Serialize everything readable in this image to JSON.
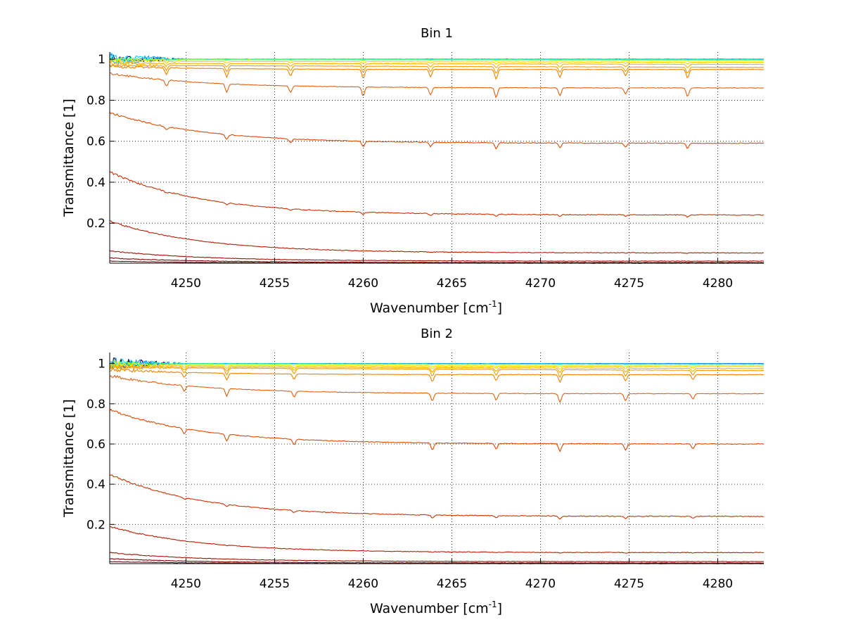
{
  "chart_data": [
    {
      "type": "line",
      "title": "Bin 1",
      "xlabel": "Wavenumber [cm",
      "xlabel_sup": "-1",
      "xlabel_end": "]",
      "ylabel": "Transmittance [1]",
      "xlim": [
        4245.7,
        4282.6
      ],
      "ylim": [
        0.005,
        1.035
      ],
      "xticks": [
        4250,
        4255,
        4260,
        4265,
        4270,
        4275,
        4280
      ],
      "yticks": [
        0.2,
        0.4,
        0.6,
        0.8,
        1
      ],
      "xtick_labels": [
        "4250",
        "4255",
        "4260",
        "4265",
        "4270",
        "4275",
        "4280"
      ],
      "ytick_labels": [
        "0.2",
        "0.4",
        "0.6",
        "0.8",
        "1"
      ],
      "grid": true,
      "grid_style": "dotted",
      "dip_positions": [
        4248.9,
        4252.3,
        4255.9,
        4260.0,
        4263.8,
        4267.5,
        4271.1,
        4274.8,
        4278.3
      ],
      "series": [
        {
          "color": "#00002a",
          "start": 1.0,
          "end": 1.0,
          "decay": 0,
          "dip": 0.0,
          "edge_noise": 0.02
        },
        {
          "color": "#1e90ff",
          "start": 1.0,
          "end": 1.0,
          "decay": 0,
          "dip": 0.0,
          "edge_noise": 0.03
        },
        {
          "color": "#00d0ff",
          "start": 1.0,
          "end": 0.998,
          "decay": 0,
          "dip": 0.0,
          "edge_noise": 0.025
        },
        {
          "color": "#39ff8a",
          "start": 1.0,
          "end": 0.997,
          "decay": 0,
          "dip": 0.002,
          "edge_noise": 0.01
        },
        {
          "color": "#e0ff20",
          "start": 0.997,
          "end": 0.993,
          "decay": 0,
          "dip": 0.004,
          "edge_noise": 0.01
        },
        {
          "color": "#ffd000",
          "start": 0.99,
          "end": 0.985,
          "decay": 0,
          "dip": 0.01,
          "edge_noise": 0.01
        },
        {
          "color": "#ffb000",
          "start": 0.98,
          "end": 0.975,
          "decay": 0,
          "dip": 0.02,
          "edge_noise": 0.008
        },
        {
          "color": "#ff9a00",
          "start": 0.97,
          "end": 0.96,
          "decay": 0,
          "dip": 0.035,
          "edge_noise": 0.008
        },
        {
          "color": "#f08000",
          "start": 0.965,
          "end": 0.95,
          "decay": 0.002,
          "dip": 0.05,
          "edge_noise": 0.006
        },
        {
          "color": "#e06010",
          "start": 0.93,
          "end": 0.86,
          "decay": 0.04,
          "dip": 0.05,
          "edge_noise": 0.005
        },
        {
          "color": "#dc4a00",
          "start": 0.74,
          "end": 0.59,
          "decay": 0.13,
          "dip": 0.03,
          "edge_noise": 0.004
        },
        {
          "color": "#cc3000",
          "start": 0.45,
          "end": 0.24,
          "decay": 0.21,
          "dip": 0.012,
          "edge_noise": 0.003
        },
        {
          "color": "#b81a00",
          "start": 0.21,
          "end": 0.055,
          "decay": 0.14,
          "dip": 0.002,
          "edge_noise": 0.002
        },
        {
          "color": "#a01000",
          "start": 0.065,
          "end": 0.015,
          "decay": 0.045,
          "dip": 0.0,
          "edge_noise": 0.001
        },
        {
          "color": "#800000",
          "start": 0.03,
          "end": 0.008,
          "decay": 0.02,
          "dip": 0.0,
          "edge_noise": 0.001
        },
        {
          "color": "#5a1010",
          "start": 0.015,
          "end": 0.005,
          "decay": 0.01,
          "dip": 0.0,
          "edge_noise": 0.0
        }
      ]
    },
    {
      "type": "line",
      "title": "Bin 2",
      "xlabel": "Wavenumber [cm",
      "xlabel_sup": "-1",
      "xlabel_end": "]",
      "ylabel": "Transmittance [1]",
      "xlim": [
        4245.7,
        4282.6
      ],
      "ylim": [
        0.005,
        1.055
      ],
      "xticks": [
        4250,
        4255,
        4260,
        4265,
        4270,
        4275,
        4280
      ],
      "yticks": [
        0.2,
        0.4,
        0.6,
        0.8,
        1
      ],
      "xtick_labels": [
        "4250",
        "4255",
        "4260",
        "4265",
        "4270",
        "4275",
        "4280"
      ],
      "ytick_labels": [
        "0.2",
        "0.4",
        "0.6",
        "0.8",
        "1"
      ],
      "grid": true,
      "grid_style": "dotted",
      "dip_positions": [
        4249.9,
        4252.3,
        4256.1,
        4263.9,
        4267.5,
        4271.1,
        4274.8,
        4278.6
      ],
      "series": [
        {
          "color": "#00002a",
          "start": 1.0,
          "end": 1.0,
          "decay": 0,
          "dip": 0.0,
          "edge_noise": 0.03
        },
        {
          "color": "#1e90ff",
          "start": 1.0,
          "end": 1.0,
          "decay": 0,
          "dip": 0.0,
          "edge_noise": 0.03
        },
        {
          "color": "#00d0ff",
          "start": 1.0,
          "end": 0.998,
          "decay": 0,
          "dip": 0.0,
          "edge_noise": 0.025
        },
        {
          "color": "#39ff8a",
          "start": 1.0,
          "end": 0.996,
          "decay": 0,
          "dip": 0.003,
          "edge_noise": 0.015
        },
        {
          "color": "#e0ff20",
          "start": 0.995,
          "end": 0.99,
          "decay": 0,
          "dip": 0.008,
          "edge_noise": 0.015
        },
        {
          "color": "#ffd000",
          "start": 0.99,
          "end": 0.985,
          "decay": 0,
          "dip": 0.015,
          "edge_noise": 0.015
        },
        {
          "color": "#ffb000",
          "start": 0.985,
          "end": 0.975,
          "decay": 0,
          "dip": 0.025,
          "edge_noise": 0.01
        },
        {
          "color": "#ff9a00",
          "start": 0.98,
          "end": 0.965,
          "decay": 0,
          "dip": 0.04,
          "edge_noise": 0.01
        },
        {
          "color": "#f08000",
          "start": 0.97,
          "end": 0.945,
          "decay": 0.005,
          "dip": 0.04,
          "edge_noise": 0.008
        },
        {
          "color": "#e06010",
          "start": 0.94,
          "end": 0.85,
          "decay": 0.05,
          "dip": 0.045,
          "edge_noise": 0.006
        },
        {
          "color": "#dc4a00",
          "start": 0.77,
          "end": 0.6,
          "decay": 0.12,
          "dip": 0.04,
          "edge_noise": 0.005
        },
        {
          "color": "#cc3000",
          "start": 0.45,
          "end": 0.24,
          "decay": 0.17,
          "dip": 0.015,
          "edge_noise": 0.003
        },
        {
          "color": "#b81a00",
          "start": 0.19,
          "end": 0.06,
          "decay": 0.1,
          "dip": 0.003,
          "edge_noise": 0.002
        },
        {
          "color": "#a01000",
          "start": 0.06,
          "end": 0.015,
          "decay": 0.04,
          "dip": 0.0,
          "edge_noise": 0.001
        },
        {
          "color": "#800000",
          "start": 0.03,
          "end": 0.008,
          "decay": 0.02,
          "dip": 0.0,
          "edge_noise": 0.001
        },
        {
          "color": "#5a1010",
          "start": 0.015,
          "end": 0.005,
          "decay": 0.01,
          "dip": 0.0,
          "edge_noise": 0.0
        }
      ]
    }
  ]
}
